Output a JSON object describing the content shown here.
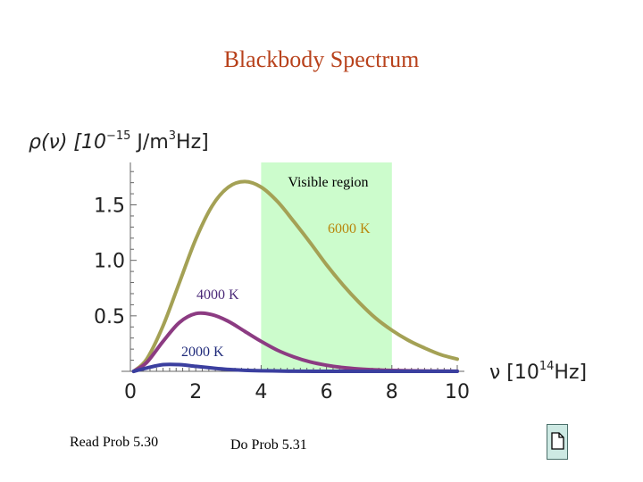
{
  "slide": {
    "title": "Blackbody Spectrum",
    "read_note": "Read Prob 5.30",
    "do_note": "Do Prob 5.31",
    "doc_icon": "document-icon"
  },
  "colors": {
    "title": "#b8421c",
    "visible_region": "#ccfccc",
    "curve_6000": "#a4a155",
    "curve_4000": "#8c3b82",
    "curve_2000": "#3b3f9f",
    "label_6000": "#b8860b",
    "label_4000": "#4b2a78",
    "label_2000": "#1f2a7a"
  },
  "chart_data": {
    "type": "line",
    "title": "",
    "ylabel_prefix": "ρ(ν) [10",
    "ylabel_exp": "−15",
    "ylabel_mid": " J/m",
    "ylabel_exp2": "3",
    "ylabel_suffix": "Hz]",
    "xlabel_prefix": "ν [10",
    "xlabel_exp": "14",
    "xlabel_suffix": "Hz]",
    "xlim": [
      0,
      10.3
    ],
    "ylim": [
      0,
      1.85
    ],
    "x_ticks": [
      "0",
      "2",
      "4",
      "6",
      "8",
      "10"
    ],
    "y_ticks": [
      "0.5",
      "1.0",
      "1.5"
    ],
    "shaded_region": {
      "label": "Visible region",
      "x": [
        4,
        8
      ]
    },
    "series": [
      {
        "name": "6000 K",
        "x": [
          0.1,
          0.5,
          1.0,
          1.5,
          2.0,
          2.5,
          3.0,
          3.5,
          4.0,
          4.5,
          5.0,
          5.5,
          6.0,
          6.5,
          7.0,
          7.5,
          8.0,
          8.5,
          9.0,
          9.5,
          10.0
        ],
        "values": [
          0.0,
          0.11,
          0.41,
          0.8,
          1.19,
          1.49,
          1.66,
          1.71,
          1.66,
          1.53,
          1.35,
          1.16,
          0.96,
          0.78,
          0.62,
          0.48,
          0.37,
          0.28,
          0.21,
          0.15,
          0.11
        ]
      },
      {
        "name": "4000 K",
        "x": [
          0.1,
          0.5,
          1.0,
          1.5,
          2.0,
          2.5,
          3.0,
          3.5,
          4.0,
          4.5,
          5.0,
          5.5,
          6.0,
          6.5,
          7.0,
          7.5,
          8.0,
          8.5,
          9.0,
          9.5,
          10.0
        ],
        "values": [
          0.0,
          0.08,
          0.27,
          0.44,
          0.52,
          0.51,
          0.45,
          0.36,
          0.27,
          0.19,
          0.13,
          0.085,
          0.055,
          0.034,
          0.021,
          0.013,
          0.008,
          0.005,
          0.003,
          0.002,
          0.001
        ]
      },
      {
        "name": "2000 K",
        "x": [
          0.1,
          0.5,
          1.0,
          1.5,
          2.0,
          2.5,
          3.0,
          3.5,
          4.0,
          4.5,
          5.0,
          6.0,
          7.0,
          8.0,
          9.0,
          10.0
        ],
        "values": [
          0.0,
          0.03,
          0.06,
          0.06,
          0.045,
          0.03,
          0.017,
          0.009,
          0.005,
          0.003,
          0.001,
          0.0,
          0.0,
          0.0,
          0.0,
          0.0
        ]
      }
    ]
  }
}
